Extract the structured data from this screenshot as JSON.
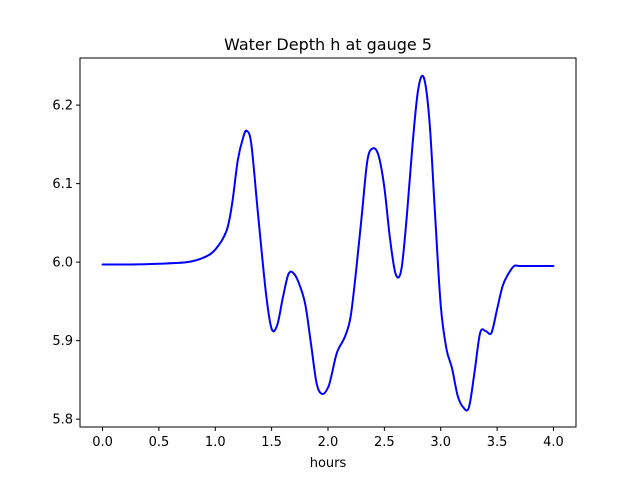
{
  "chart_data": {
    "type": "line",
    "title": "Water Depth h at gauge 5",
    "xlabel": "hours",
    "ylabel": "",
    "xlim": [
      -0.2,
      4.2
    ],
    "ylim": [
      5.79,
      6.26
    ],
    "xticks": [
      0.0,
      0.5,
      1.0,
      1.5,
      2.0,
      2.5,
      3.0,
      3.5,
      4.0
    ],
    "xtick_labels": [
      "0.0",
      "0.5",
      "1.0",
      "1.5",
      "2.0",
      "2.5",
      "3.0",
      "3.5",
      "4.0"
    ],
    "yticks": [
      5.8,
      5.9,
      6.0,
      6.1,
      6.2
    ],
    "ytick_labels": [
      "5.8",
      "5.9",
      "6.0",
      "6.1",
      "6.2"
    ],
    "grid": false,
    "series": [
      {
        "name": "",
        "color": "#0000ff",
        "x": [
          0.0,
          0.25,
          0.5,
          0.75,
          0.9,
          1.0,
          1.1,
          1.15,
          1.2,
          1.25,
          1.28,
          1.32,
          1.38,
          1.45,
          1.5,
          1.55,
          1.6,
          1.65,
          1.7,
          1.75,
          1.8,
          1.85,
          1.9,
          1.95,
          2.0,
          2.03,
          2.08,
          2.15,
          2.2,
          2.25,
          2.3,
          2.35,
          2.4,
          2.45,
          2.5,
          2.55,
          2.6,
          2.65,
          2.7,
          2.75,
          2.8,
          2.85,
          2.9,
          2.95,
          3.0,
          3.05,
          3.1,
          3.15,
          3.2,
          3.25,
          3.3,
          3.35,
          3.4,
          3.45,
          3.5,
          3.55,
          3.6,
          3.65,
          3.7,
          3.75,
          3.8,
          3.85,
          3.9,
          3.95,
          4.0
        ],
        "y": [
          5.997,
          5.997,
          5.998,
          6.0,
          6.006,
          6.016,
          6.04,
          6.075,
          6.13,
          6.16,
          6.167,
          6.15,
          6.06,
          5.96,
          5.915,
          5.92,
          5.955,
          5.985,
          5.985,
          5.97,
          5.945,
          5.895,
          5.845,
          5.832,
          5.84,
          5.855,
          5.885,
          5.905,
          5.93,
          5.99,
          6.06,
          6.13,
          6.145,
          6.135,
          6.095,
          6.03,
          5.985,
          5.99,
          6.06,
          6.15,
          6.22,
          6.235,
          6.18,
          6.06,
          5.945,
          5.89,
          5.865,
          5.83,
          5.815,
          5.815,
          5.86,
          5.91,
          5.912,
          5.91,
          5.94,
          5.97,
          5.985,
          5.995,
          5.995,
          5.995,
          5.995,
          5.995,
          5.995,
          5.995,
          5.995
        ]
      }
    ]
  }
}
